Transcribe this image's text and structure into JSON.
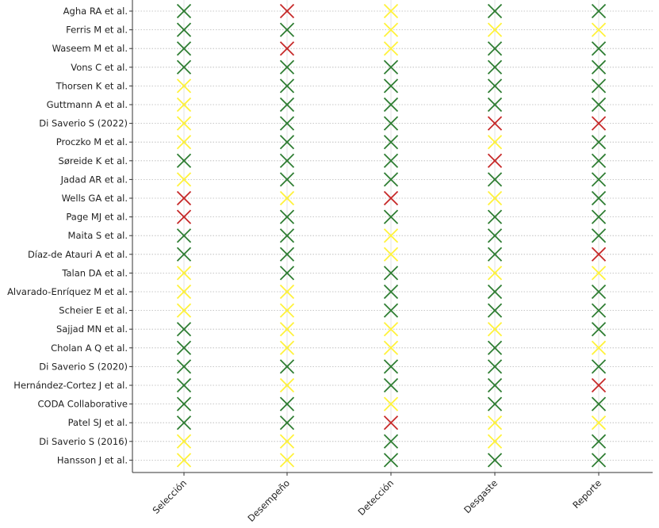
{
  "chart_data": {
    "type": "scatter",
    "subtype": "risk-of-bias-matrix",
    "marker": "x",
    "title": "",
    "xlabel": "",
    "ylabel": "",
    "grid": "horizontal dotted",
    "categories": [
      "Selección",
      "Desempeño",
      "Detección",
      "Desgaste",
      "Reporte"
    ],
    "studies": [
      {
        "name": "Agha RA et al.",
        "ratings": [
          "green",
          "red",
          "yellow",
          "green",
          "green"
        ]
      },
      {
        "name": "Ferris M et al.",
        "ratings": [
          "green",
          "green",
          "yellow",
          "yellow",
          "yellow"
        ]
      },
      {
        "name": "Waseem M et al.",
        "ratings": [
          "green",
          "red",
          "yellow",
          "green",
          "green"
        ]
      },
      {
        "name": "Vons C et al.",
        "ratings": [
          "green",
          "green",
          "green",
          "green",
          "green"
        ]
      },
      {
        "name": "Thorsen K et al.",
        "ratings": [
          "yellow",
          "green",
          "green",
          "green",
          "green"
        ]
      },
      {
        "name": "Guttmann A et al.",
        "ratings": [
          "yellow",
          "green",
          "green",
          "green",
          "green"
        ]
      },
      {
        "name": "Di Saverio S (2022)",
        "ratings": [
          "yellow",
          "green",
          "green",
          "red",
          "red"
        ]
      },
      {
        "name": "Proczko M et al.",
        "ratings": [
          "yellow",
          "green",
          "green",
          "yellow",
          "green"
        ]
      },
      {
        "name": "Søreide K et al.",
        "ratings": [
          "green",
          "green",
          "green",
          "red",
          "green"
        ]
      },
      {
        "name": "Jadad AR et al.",
        "ratings": [
          "yellow",
          "green",
          "green",
          "green",
          "green"
        ]
      },
      {
        "name": "Wells GA et al.",
        "ratings": [
          "red",
          "yellow",
          "red",
          "yellow",
          "green"
        ]
      },
      {
        "name": "Page MJ et al.",
        "ratings": [
          "red",
          "green",
          "green",
          "green",
          "green"
        ]
      },
      {
        "name": "Maita S et al.",
        "ratings": [
          "green",
          "green",
          "yellow",
          "green",
          "green"
        ]
      },
      {
        "name": "Díaz-de Atauri A et al.",
        "ratings": [
          "green",
          "green",
          "yellow",
          "green",
          "red"
        ]
      },
      {
        "name": "Talan DA et al.",
        "ratings": [
          "yellow",
          "green",
          "green",
          "yellow",
          "yellow"
        ]
      },
      {
        "name": "Alvarado-Enríquez M et al.",
        "ratings": [
          "yellow",
          "yellow",
          "green",
          "green",
          "green"
        ]
      },
      {
        "name": "Scheier E et al.",
        "ratings": [
          "yellow",
          "yellow",
          "green",
          "green",
          "green"
        ]
      },
      {
        "name": "Sajjad MN et al.",
        "ratings": [
          "green",
          "yellow",
          "yellow",
          "yellow",
          "green"
        ]
      },
      {
        "name": "Cholan A Q et al.",
        "ratings": [
          "green",
          "yellow",
          "yellow",
          "green",
          "yellow"
        ]
      },
      {
        "name": "Di Saverio S (2020)",
        "ratings": [
          "green",
          "green",
          "green",
          "green",
          "green"
        ]
      },
      {
        "name": "Hernández-Cortez J et al.",
        "ratings": [
          "green",
          "yellow",
          "green",
          "green",
          "red"
        ]
      },
      {
        "name": "CODA Collaborative",
        "ratings": [
          "green",
          "green",
          "yellow",
          "green",
          "green"
        ]
      },
      {
        "name": "Patel SJ et al.",
        "ratings": [
          "green",
          "green",
          "red",
          "yellow",
          "yellow"
        ]
      },
      {
        "name": "Di Saverio S (2016)",
        "ratings": [
          "yellow",
          "yellow",
          "green",
          "yellow",
          "green"
        ]
      },
      {
        "name": "Hansson J et al.",
        "ratings": [
          "yellow",
          "yellow",
          "green",
          "green",
          "green"
        ]
      }
    ],
    "colors": {
      "green": "#2e7d32",
      "red": "#c62828",
      "yellow": "#fff23a"
    }
  }
}
